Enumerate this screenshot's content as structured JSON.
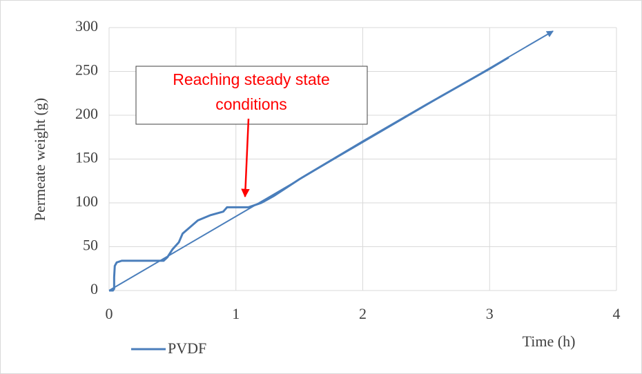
{
  "chart_data": {
    "type": "line",
    "x_label": "Time (h)",
    "y_label": "Permeate weight (g)",
    "xlim": [
      0,
      4
    ],
    "xticks": [
      0,
      1,
      2,
      3,
      4
    ],
    "ylim": [
      0,
      300
    ],
    "yticks": [
      0,
      50,
      100,
      150,
      200,
      250,
      300
    ],
    "grid": true,
    "legend": "bottom-left",
    "series": [
      {
        "name": "PVDF",
        "color": "#4a7ebb",
        "x": [
          0,
          0.03,
          0.04,
          0.04,
          0.045,
          0.06,
          0.1,
          0.2,
          0.3,
          0.43,
          0.46,
          0.5,
          0.55,
          0.58,
          0.62,
          0.7,
          0.8,
          0.9,
          0.93,
          1.0,
          1.1,
          1.2,
          1.3,
          1.5,
          2.0,
          2.5,
          3.0,
          3.15
        ],
        "values": [
          0,
          0,
          2,
          15,
          28,
          32,
          34,
          34,
          34,
          34,
          38,
          47,
          55,
          65,
          70,
          80,
          86,
          90,
          95,
          95,
          95,
          100,
          108,
          127,
          170,
          212,
          253,
          266
        ]
      }
    ],
    "trend_line": {
      "color": "#4a7ebb",
      "x": [
        0,
        3.5
      ],
      "values": [
        0,
        296
      ]
    },
    "annotation": {
      "lines": [
        "Reaching steady state",
        "conditions"
      ],
      "color": "#ff0000"
    }
  }
}
